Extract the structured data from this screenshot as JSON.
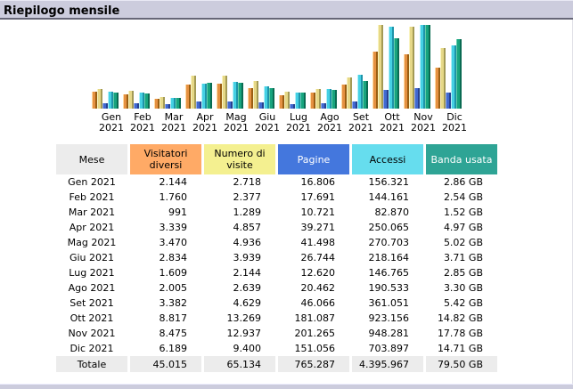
{
  "title": "Riepilogo mensile",
  "colors": {
    "title_bar_bg": "#CCCCDD",
    "title_bar_rule": "#666677",
    "table_neutral_bg": "#ECECEC",
    "header_bgs": [
      "#ECECEC",
      "#FFAA66",
      "#F4F090",
      "#4477DD",
      "#66DDEE",
      "#2EA495"
    ],
    "header_text": [
      "#000000",
      "#000000",
      "#000000",
      "#FFFFFF",
      "#000000",
      "#FFFFFF"
    ]
  },
  "chart_data": {
    "type": "bar",
    "title": "Riepilogo mensile",
    "categories": [
      "Gen 2021",
      "Feb 2021",
      "Mar 2021",
      "Apr 2021",
      "Mag 2021",
      "Giu 2021",
      "Lug 2021",
      "Ago 2021",
      "Set 2021",
      "Ott 2021",
      "Nov 2021",
      "Dic 2021"
    ],
    "series": [
      {
        "name": "Visitatori diversi",
        "scale_group": "visits",
        "color": "#E59142",
        "color_light": "#FFD9A0",
        "color_dark": "#9A5E12",
        "values": [
          2144,
          1760,
          991,
          3339,
          3470,
          2834,
          1609,
          2005,
          3382,
          8817,
          8475,
          6189
        ]
      },
      {
        "name": "Numero di visite",
        "scale_group": "visits",
        "color": "#E6D887",
        "color_light": "#FAF4C0",
        "color_dark": "#A39A55",
        "values": [
          2718,
          2377,
          1289,
          4857,
          4936,
          3939,
          2144,
          2639,
          4629,
          13269,
          12937,
          9400
        ]
      },
      {
        "name": "Pagine",
        "scale_group": "hits",
        "color": "#4169D0",
        "color_light": "#8FA8EC",
        "color_dark": "#27408F",
        "values": [
          16806,
          17691,
          10721,
          39271,
          41498,
          26744,
          12620,
          20462,
          46066,
          181087,
          201265,
          151056
        ]
      },
      {
        "name": "Accessi",
        "scale_group": "hits",
        "color": "#45D0E4",
        "color_light": "#B0F0F8",
        "color_dark": "#1E93A8",
        "values": [
          156321,
          144161,
          82870,
          250065,
          270703,
          218164,
          146765,
          190533,
          361051,
          923156,
          948281,
          703897
        ]
      },
      {
        "name": "Banda usata (GB)",
        "scale_group": "bandwidth",
        "color": "#17A47E",
        "color_light": "#63CCAC",
        "color_dark": "#0A6B52",
        "values": [
          2.86,
          2.54,
          1.52,
          4.97,
          5.02,
          3.71,
          2.85,
          3.3,
          5.42,
          14.82,
          17.78,
          14.71
        ]
      }
    ],
    "legend_position": "none",
    "grid": false,
    "axes_visible": false
  },
  "table": {
    "headers": [
      "Mese",
      "Visitatori diversi",
      "Numero di visite",
      "Pagine",
      "Accessi",
      "Banda usata"
    ],
    "rows": [
      [
        "Gen 2021",
        "2.144",
        "2.718",
        "16.806",
        "156.321",
        "2.86 GB"
      ],
      [
        "Feb 2021",
        "1.760",
        "2.377",
        "17.691",
        "144.161",
        "2.54 GB"
      ],
      [
        "Mar 2021",
        "991",
        "1.289",
        "10.721",
        "82.870",
        "1.52 GB"
      ],
      [
        "Apr 2021",
        "3.339",
        "4.857",
        "39.271",
        "250.065",
        "4.97 GB"
      ],
      [
        "Mag 2021",
        "3.470",
        "4.936",
        "41.498",
        "270.703",
        "5.02 GB"
      ],
      [
        "Giu 2021",
        "2.834",
        "3.939",
        "26.744",
        "218.164",
        "3.71 GB"
      ],
      [
        "Lug 2021",
        "1.609",
        "2.144",
        "12.620",
        "146.765",
        "2.85 GB"
      ],
      [
        "Ago 2021",
        "2.005",
        "2.639",
        "20.462",
        "190.533",
        "3.30 GB"
      ],
      [
        "Set 2021",
        "3.382",
        "4.629",
        "46.066",
        "361.051",
        "5.42 GB"
      ],
      [
        "Ott 2021",
        "8.817",
        "13.269",
        "181.087",
        "923.156",
        "14.82 GB"
      ],
      [
        "Nov 2021",
        "8.475",
        "12.937",
        "201.265",
        "948.281",
        "17.78 GB"
      ],
      [
        "Dic 2021",
        "6.189",
        "9.400",
        "151.056",
        "703.897",
        "14.71 GB"
      ]
    ],
    "total_row": [
      "Totale",
      "45.015",
      "65.134",
      "765.287",
      "4.395.967",
      "79.50 GB"
    ]
  }
}
